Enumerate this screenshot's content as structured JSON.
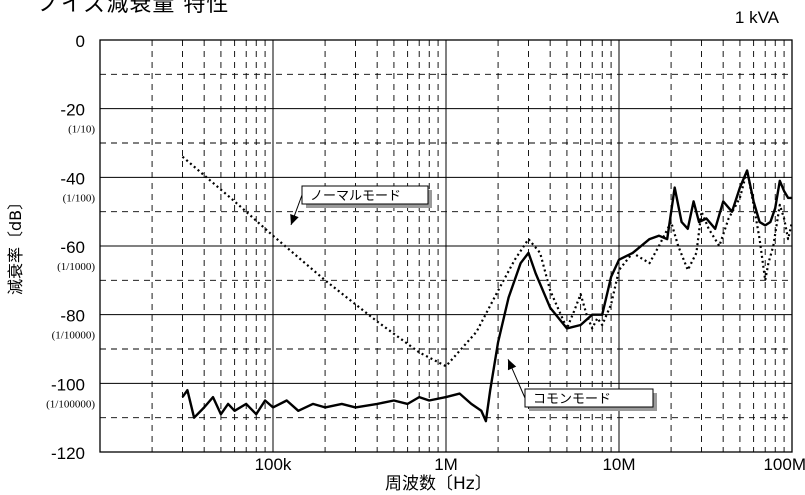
{
  "header": {
    "title": "ノイズ減衰量 特性",
    "note": "1 kVA"
  },
  "chart_data": {
    "type": "line",
    "xlabel": "周波数〔Hz〕",
    "ylabel": "減衰率〔dB〕",
    "x_scale": "log",
    "xlim": [
      10000,
      100000000
    ],
    "ylim": [
      -120,
      0
    ],
    "x_tick_labels": [
      {
        "value": 100000,
        "label": "100k"
      },
      {
        "value": 1000000,
        "label": "1M"
      },
      {
        "value": 10000000,
        "label": "10M"
      },
      {
        "value": 100000000,
        "label": "100M"
      }
    ],
    "y_ticks": [
      {
        "value": 0,
        "label": "0",
        "sub": ""
      },
      {
        "value": -20,
        "label": "-20",
        "sub": "(1/10)"
      },
      {
        "value": -40,
        "label": "-40",
        "sub": "(1/100)"
      },
      {
        "value": -60,
        "label": "-60",
        "sub": "(1/1000)"
      },
      {
        "value": -80,
        "label": "-80",
        "sub": "(1/10000)"
      },
      {
        "value": -100,
        "label": "-100",
        "sub": "(1/100000)"
      },
      {
        "value": -120,
        "label": "-120",
        "sub": ""
      }
    ],
    "grid": true,
    "series": [
      {
        "name": "ノーマルモード",
        "style": "dotted",
        "color": "#000000",
        "points": [
          [
            30000,
            -34
          ],
          [
            60000,
            -47
          ],
          [
            100000,
            -57
          ],
          [
            200000,
            -70
          ],
          [
            400000,
            -82
          ],
          [
            700000,
            -91
          ],
          [
            1000000,
            -95
          ],
          [
            1500000,
            -85
          ],
          [
            2000000,
            -73
          ],
          [
            2500000,
            -64
          ],
          [
            3000000,
            -58
          ],
          [
            3500000,
            -62
          ],
          [
            4000000,
            -73
          ],
          [
            5000000,
            -84
          ],
          [
            5500000,
            -79
          ],
          [
            6000000,
            -74
          ],
          [
            6500000,
            -80
          ],
          [
            7000000,
            -84
          ],
          [
            7500000,
            -81
          ],
          [
            8000000,
            -83
          ],
          [
            9000000,
            -77
          ],
          [
            10000000,
            -67
          ],
          [
            12000000,
            -62
          ],
          [
            15000000,
            -65
          ],
          [
            17000000,
            -60
          ],
          [
            20000000,
            -53
          ],
          [
            22000000,
            -60
          ],
          [
            25000000,
            -67
          ],
          [
            28000000,
            -62
          ],
          [
            30000000,
            -50
          ],
          [
            33000000,
            -55
          ],
          [
            38000000,
            -60
          ],
          [
            43000000,
            -52
          ],
          [
            50000000,
            -46
          ],
          [
            55000000,
            -38
          ],
          [
            60000000,
            -48
          ],
          [
            65000000,
            -58
          ],
          [
            70000000,
            -70
          ],
          [
            73000000,
            -65
          ],
          [
            78000000,
            -60
          ],
          [
            85000000,
            -48
          ],
          [
            90000000,
            -52
          ],
          [
            95000000,
            -58
          ],
          [
            100000000,
            -53
          ]
        ]
      },
      {
        "name": "コモンモード",
        "style": "solid",
        "color": "#000000",
        "points": [
          [
            30000,
            -104
          ],
          [
            32000,
            -102
          ],
          [
            35000,
            -110
          ],
          [
            40000,
            -107
          ],
          [
            45000,
            -104
          ],
          [
            50000,
            -109
          ],
          [
            55000,
            -106
          ],
          [
            60000,
            -108
          ],
          [
            70000,
            -106
          ],
          [
            80000,
            -109
          ],
          [
            90000,
            -105
          ],
          [
            100000,
            -107
          ],
          [
            120000,
            -105
          ],
          [
            140000,
            -108
          ],
          [
            170000,
            -106
          ],
          [
            200000,
            -107
          ],
          [
            250000,
            -106
          ],
          [
            300000,
            -107
          ],
          [
            400000,
            -106
          ],
          [
            500000,
            -105
          ],
          [
            600000,
            -106
          ],
          [
            700000,
            -104
          ],
          [
            800000,
            -105
          ],
          [
            1000000,
            -104
          ],
          [
            1200000,
            -103
          ],
          [
            1400000,
            -106
          ],
          [
            1600000,
            -108
          ],
          [
            1700000,
            -111
          ],
          [
            1800000,
            -102
          ],
          [
            2000000,
            -88
          ],
          [
            2300000,
            -75
          ],
          [
            2700000,
            -65
          ],
          [
            3000000,
            -62
          ],
          [
            3300000,
            -68
          ],
          [
            4000000,
            -78
          ],
          [
            5000000,
            -84
          ],
          [
            6000000,
            -83
          ],
          [
            7000000,
            -80
          ],
          [
            8000000,
            -80
          ],
          [
            9000000,
            -69
          ],
          [
            10000000,
            -64
          ],
          [
            12000000,
            -62
          ],
          [
            15000000,
            -58
          ],
          [
            17000000,
            -57
          ],
          [
            19000000,
            -58
          ],
          [
            21000000,
            -43
          ],
          [
            23000000,
            -53
          ],
          [
            25000000,
            -55
          ],
          [
            27000000,
            -47
          ],
          [
            29000000,
            -53
          ],
          [
            32000000,
            -52
          ],
          [
            36000000,
            -55
          ],
          [
            40000000,
            -47
          ],
          [
            45000000,
            -50
          ],
          [
            50000000,
            -43
          ],
          [
            55000000,
            -38
          ],
          [
            60000000,
            -47
          ],
          [
            65000000,
            -53
          ],
          [
            70000000,
            -54
          ],
          [
            75000000,
            -53
          ],
          [
            80000000,
            -49
          ],
          [
            85000000,
            -41
          ],
          [
            90000000,
            -44
          ],
          [
            95000000,
            -46
          ],
          [
            100000000,
            -46
          ]
        ]
      }
    ],
    "annotations": [
      {
        "text": "ノーマルモード",
        "series": 0
      },
      {
        "text": "コモンモード",
        "series": 1
      }
    ]
  }
}
